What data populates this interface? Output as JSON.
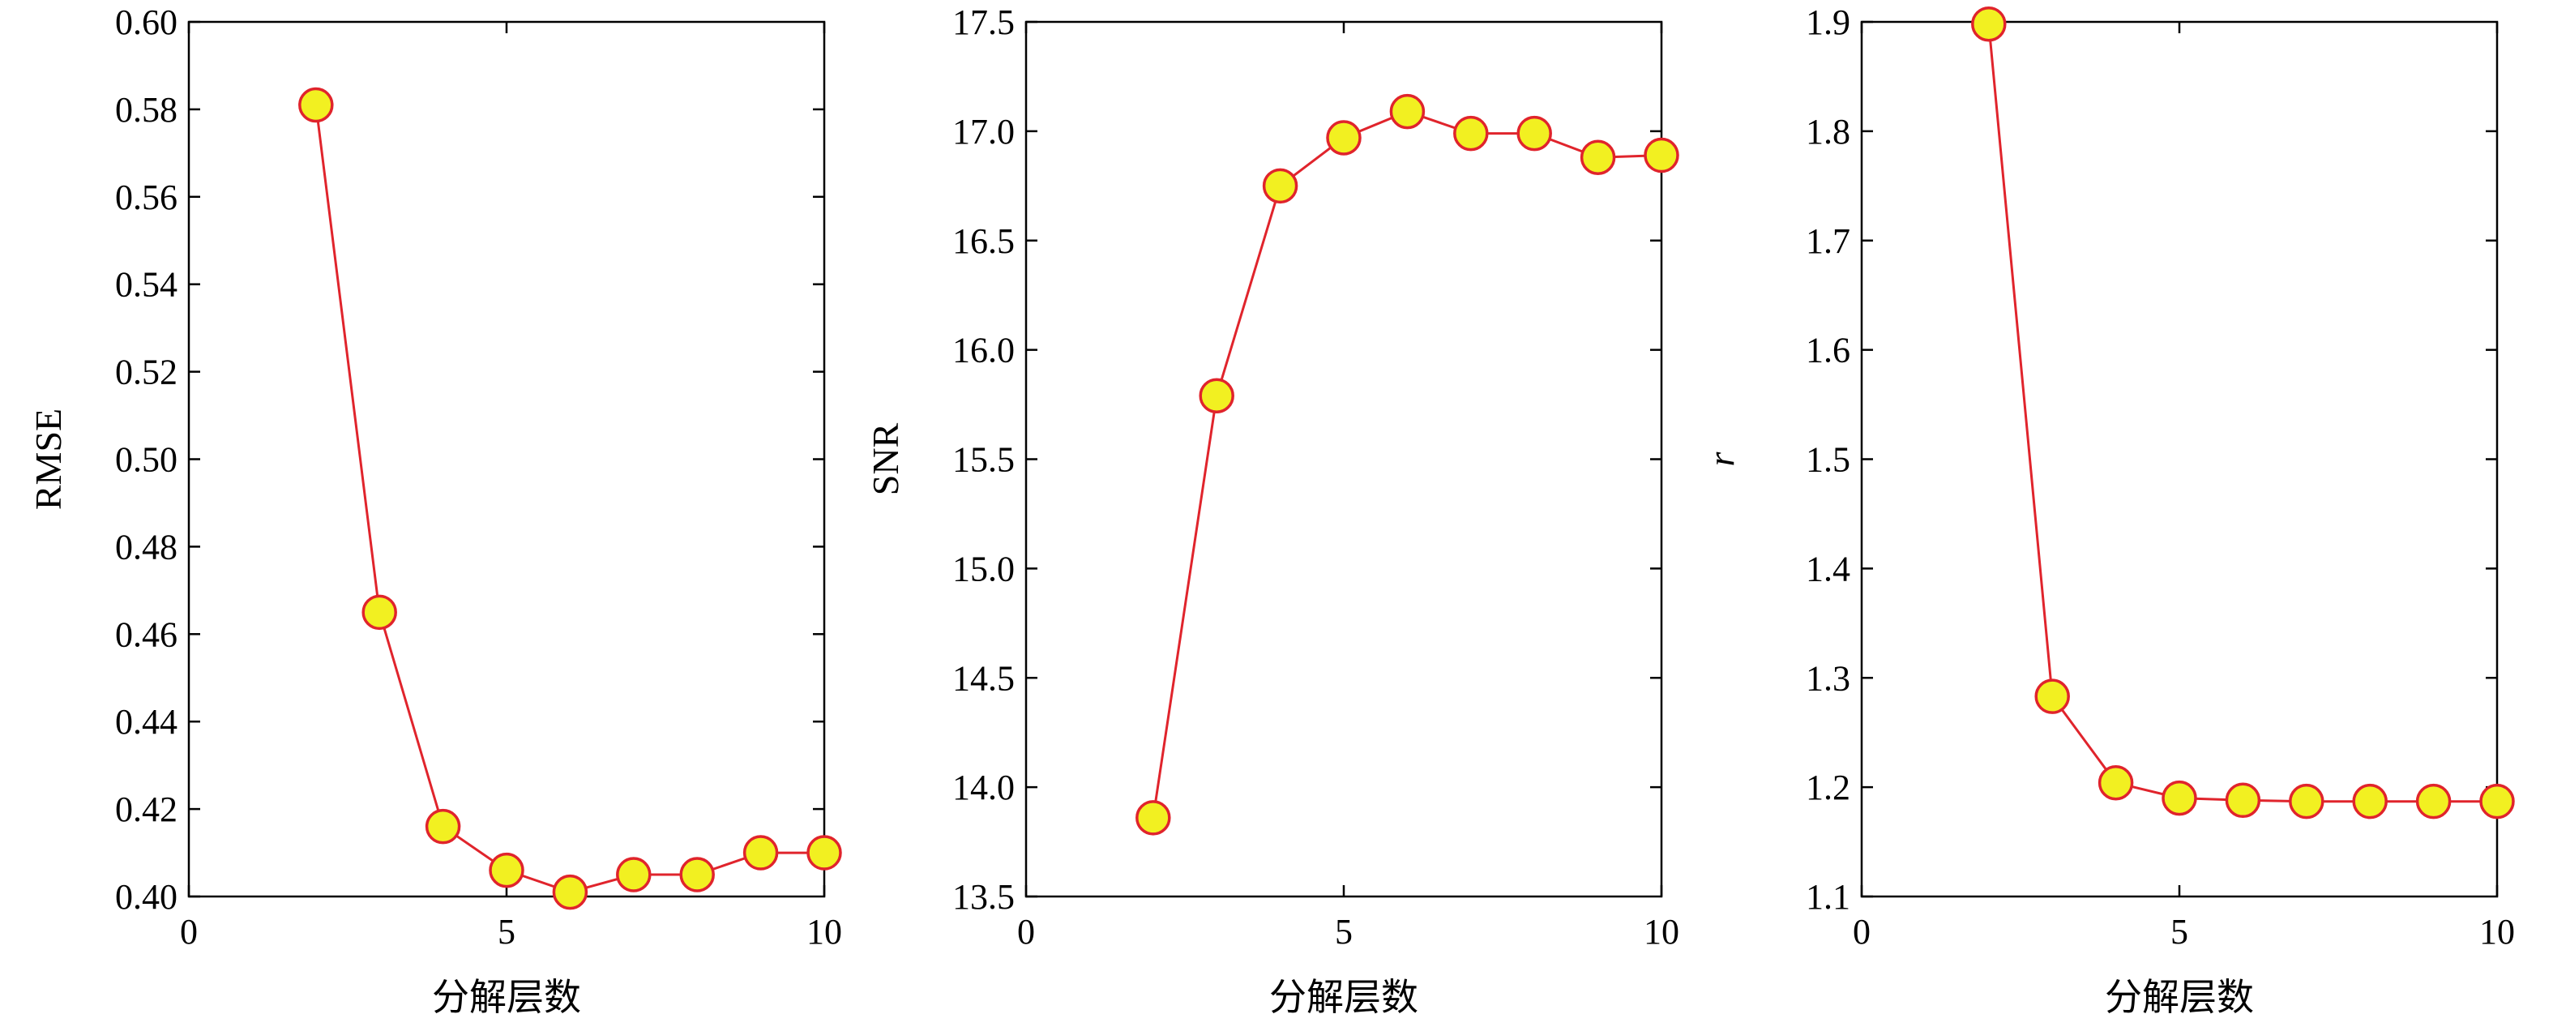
{
  "colors": {
    "line": "#e0242c",
    "marker_fill": "#f2f021",
    "axes": "#000000"
  },
  "chart_data": [
    {
      "type": "line",
      "xlabel": "分解层数",
      "ylabel": "RMSE",
      "ylabel_italic": false,
      "xlim": [
        0,
        10
      ],
      "ylim": [
        0.4,
        0.6
      ],
      "xticks": [
        0,
        5,
        10
      ],
      "xtick_labels": [
        "0",
        "5",
        "10"
      ],
      "yticks": [
        0.4,
        0.42,
        0.44,
        0.46,
        0.48,
        0.5,
        0.52,
        0.54,
        0.56,
        0.58,
        0.6
      ],
      "ytick_labels": [
        "0.40",
        "0.42",
        "0.44",
        "0.46",
        "0.48",
        "0.50",
        "0.52",
        "0.54",
        "0.56",
        "0.58",
        "0.60"
      ],
      "x": [
        2,
        3,
        4,
        5,
        6,
        7,
        8,
        9,
        10
      ],
      "y": [
        0.581,
        0.465,
        0.416,
        0.406,
        0.401,
        0.405,
        0.405,
        0.41,
        0.41
      ],
      "grid": false
    },
    {
      "type": "line",
      "xlabel": "分解层数",
      "ylabel": "SNR",
      "ylabel_italic": false,
      "xlim": [
        0,
        10
      ],
      "ylim": [
        13.5,
        17.5
      ],
      "xticks": [
        0,
        5,
        10
      ],
      "xtick_labels": [
        "0",
        "5",
        "10"
      ],
      "yticks": [
        13.5,
        14.0,
        14.5,
        15.0,
        15.5,
        16.0,
        16.5,
        17.0,
        17.5
      ],
      "ytick_labels": [
        "13.5",
        "14.0",
        "14.5",
        "15.0",
        "15.5",
        "16.0",
        "16.5",
        "17.0",
        "17.5"
      ],
      "x": [
        2,
        3,
        4,
        5,
        6,
        7,
        8,
        9,
        10
      ],
      "y": [
        13.86,
        15.79,
        16.75,
        16.97,
        17.09,
        16.99,
        16.99,
        16.88,
        16.89
      ],
      "grid": false
    },
    {
      "type": "line",
      "xlabel": "分解层数",
      "ylabel": "r",
      "ylabel_italic": true,
      "xlim": [
        0,
        10
      ],
      "ylim": [
        1.1,
        1.9
      ],
      "xticks": [
        0,
        5,
        10
      ],
      "xtick_labels": [
        "0",
        "5",
        "10"
      ],
      "yticks": [
        1.1,
        1.2,
        1.3,
        1.4,
        1.5,
        1.6,
        1.7,
        1.8,
        1.9
      ],
      "ytick_labels": [
        "1.1",
        "1.2",
        "1.3",
        "1.4",
        "1.5",
        "1.6",
        "1.7",
        "1.8",
        "1.9"
      ],
      "x": [
        2,
        3,
        4,
        5,
        6,
        7,
        8,
        9,
        10
      ],
      "y": [
        1.898,
        1.283,
        1.204,
        1.19,
        1.188,
        1.187,
        1.187,
        1.187,
        1.187
      ],
      "grid": false
    }
  ]
}
